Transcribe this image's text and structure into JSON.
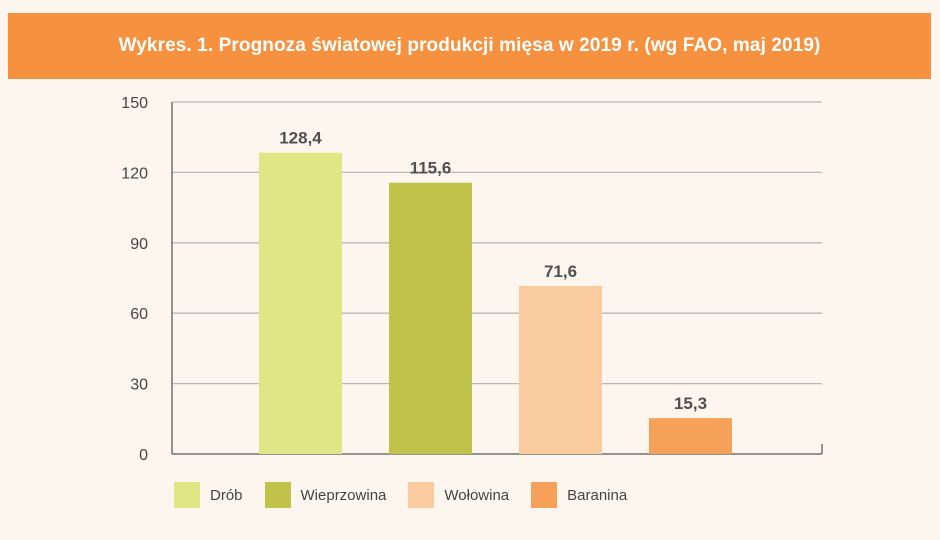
{
  "title": "Wykres. 1. Prognoza światowej produkcji mięsa w 2019 r. (wg FAO, maj 2019)",
  "chart_data": {
    "type": "bar",
    "categories": [
      "Drób",
      "Wieprzowina",
      "Wołowina",
      "Baranina"
    ],
    "values": [
      128.4,
      115.6,
      71.6,
      15.3
    ],
    "value_labels": [
      "128,4",
      "115,6",
      "71,6",
      "15,3"
    ],
    "colors": [
      "#e0e585",
      "#c1c24a",
      "#fbcba0",
      "#f6a15a"
    ],
    "yticks": [
      "0",
      "30",
      "60",
      "90",
      "120",
      "150"
    ],
    "ylim": [
      0,
      150
    ],
    "grid": true,
    "legend_position": "bottom"
  },
  "legend": [
    {
      "label": "Drób",
      "color": "#e0e585"
    },
    {
      "label": "Wieprzowina",
      "color": "#c1c24a"
    },
    {
      "label": "Wołowina",
      "color": "#fbcba0"
    },
    {
      "label": "Baranina",
      "color": "#f6a15a"
    }
  ]
}
